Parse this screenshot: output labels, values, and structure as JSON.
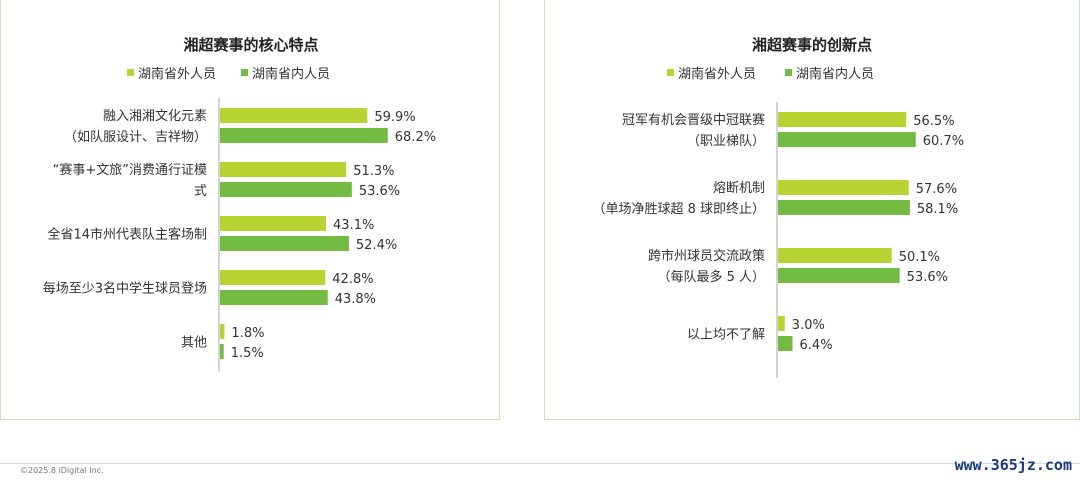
{
  "colors": {
    "outside": "#b7d433",
    "inside": "#74bb44",
    "axis": "#aaaaaa"
  },
  "charts": [
    {
      "title": "湘超赛事的核心特点",
      "legend": [
        "湖南省外人员",
        "湖南省内人员"
      ],
      "categories": [
        {
          "lines": [
            "融入湘湘文化元素",
            "（如队服设计、吉祥物）"
          ]
        },
        {
          "lines": [
            "“赛事+文旅”消费通行证模",
            "式"
          ]
        },
        {
          "lines": [
            "全省14市州代表队主客场制"
          ]
        },
        {
          "lines": [
            "每场至少3名中学生球员登场"
          ]
        },
        {
          "lines": [
            "其他"
          ]
        }
      ],
      "value_labels": [
        [
          "59.9%",
          "68.2%"
        ],
        [
          "51.3%",
          "53.6%"
        ],
        [
          "43.1%",
          "52.4%"
        ],
        [
          "42.8%",
          "43.8%"
        ],
        [
          "1.8%",
          "1.5%"
        ]
      ]
    },
    {
      "title": "湘超赛事的创新点",
      "legend": [
        "湖南省外人员",
        "湖南省内人员"
      ],
      "categories": [
        {
          "lines": [
            "冠军有机会晋级中冠联赛",
            "（职业梯队）"
          ]
        },
        {
          "lines": [
            "熔断机制",
            "（单场净胜球超 8 球即终止）"
          ]
        },
        {
          "lines": [
            "跨市州球员交流政策",
            "（每队最多 5 人）"
          ]
        },
        {
          "lines": [
            "以上均不了解"
          ]
        }
      ],
      "value_labels": [
        [
          "56.5%",
          "60.7%"
        ],
        [
          "57.6%",
          "58.1%"
        ],
        [
          "50.1%",
          "53.6%"
        ],
        [
          "3.0%",
          "6.4%"
        ]
      ]
    }
  ],
  "chart_data": [
    {
      "type": "bar",
      "title": "湘超赛事的核心特点",
      "categories": [
        "融入湘湘文化元素（如队服设计、吉祥物）",
        "“赛事+文旅”消费通行证模式",
        "全省14市州代表队主客场制",
        "每场至少3名中学生球员登场",
        "其他"
      ],
      "series": [
        {
          "name": "湖南省外人员",
          "values": [
            59.9,
            51.3,
            43.1,
            42.8,
            1.8
          ]
        },
        {
          "name": "湖南省内人员",
          "values": [
            68.2,
            53.6,
            52.4,
            43.8,
            1.5
          ]
        }
      ],
      "orientation": "horizontal",
      "legend_position": "top",
      "grid": false
    },
    {
      "type": "bar",
      "title": "湘超赛事的创新点",
      "categories": [
        "冠军有机会晋级中冠联赛（职业梯队）",
        "熔断机制（单场净胜球超 8 球即终止）",
        "跨市州球员交流政策（每队最多 5 人）",
        "以上均不了解"
      ],
      "series": [
        {
          "name": "湖南省外人员",
          "values": [
            56.5,
            57.6,
            50.1,
            3.0
          ]
        },
        {
          "name": "湖南省内人员",
          "values": [
            60.7,
            58.1,
            53.6,
            6.4
          ]
        }
      ],
      "orientation": "horizontal",
      "legend_position": "top",
      "grid": false
    }
  ],
  "footer": {
    "copyright": "©2025.8 iDigital Inc.",
    "watermark": "www.365jz.com"
  }
}
